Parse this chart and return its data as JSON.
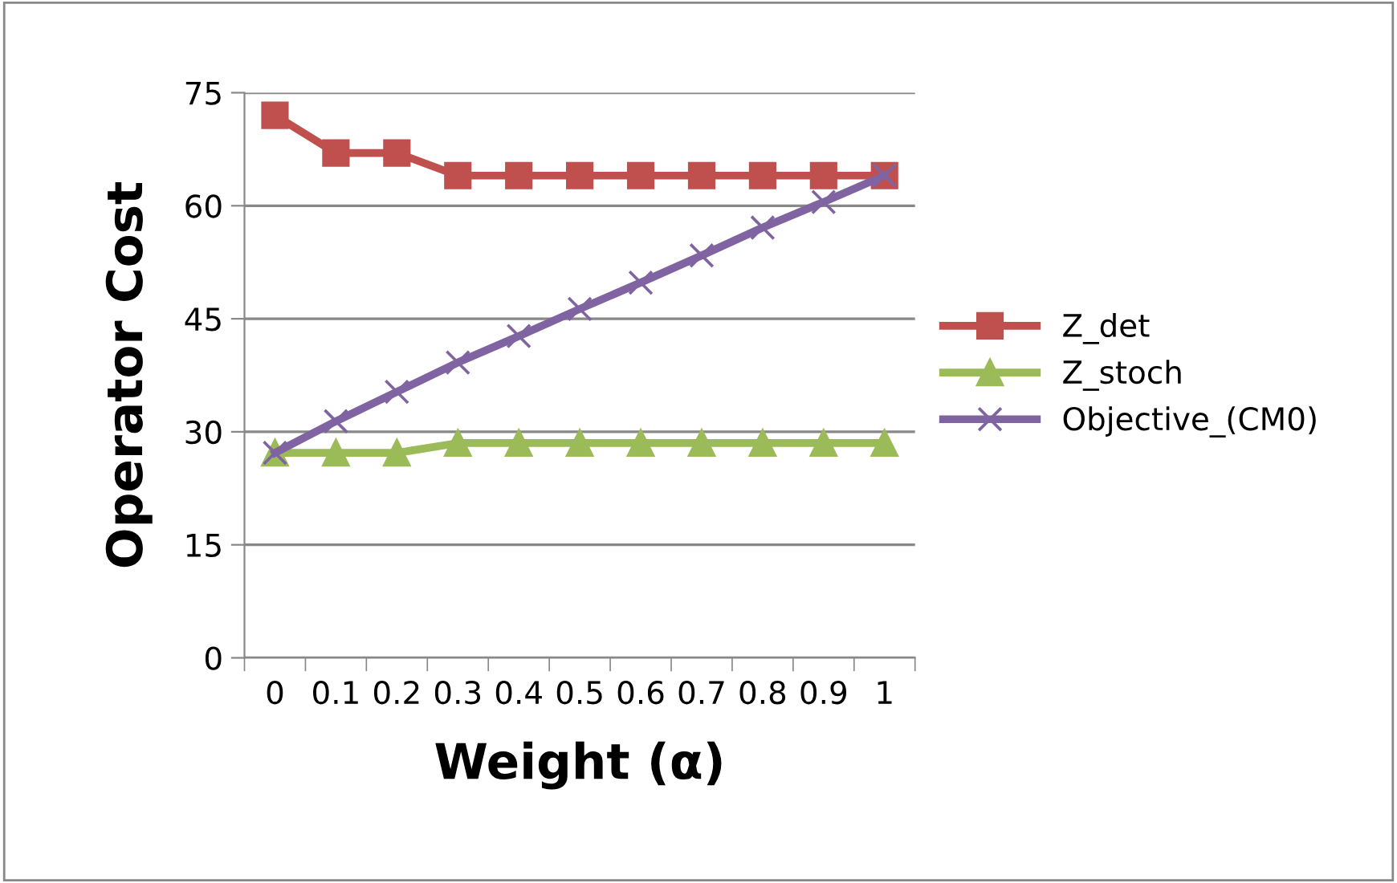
{
  "chart_data": {
    "type": "line",
    "xlabel": "Weight (α)",
    "ylabel": "Operator Cost",
    "categories": [
      "0",
      "0.1",
      "0.2",
      "0.3",
      "0.4",
      "0.5",
      "0.6",
      "0.7",
      "0.8",
      "0.9",
      "1"
    ],
    "series": [
      {
        "name": "Z_det",
        "color": "#c0504d",
        "marker": "square",
        "values": [
          72,
          67,
          67,
          64,
          64,
          64,
          64,
          64,
          64,
          64,
          64
        ]
      },
      {
        "name": "Z_stoch",
        "color": "#9bbb59",
        "marker": "triangle",
        "values": [
          27.2,
          27.2,
          27.2,
          28.5,
          28.5,
          28.5,
          28.5,
          28.5,
          28.5,
          28.5,
          28.5
        ]
      },
      {
        "name": "Objective_(CM0)",
        "color": "#8064a2",
        "marker": "cross",
        "values": [
          27.2,
          31.4,
          35.3,
          39.2,
          42.7,
          46.3,
          49.8,
          53.4,
          57.1,
          60.5,
          64.0
        ]
      }
    ],
    "ylim": [
      0,
      75
    ],
    "yticks": [
      0,
      15,
      30,
      45,
      60,
      75
    ],
    "grid": "y",
    "legend": "right"
  }
}
